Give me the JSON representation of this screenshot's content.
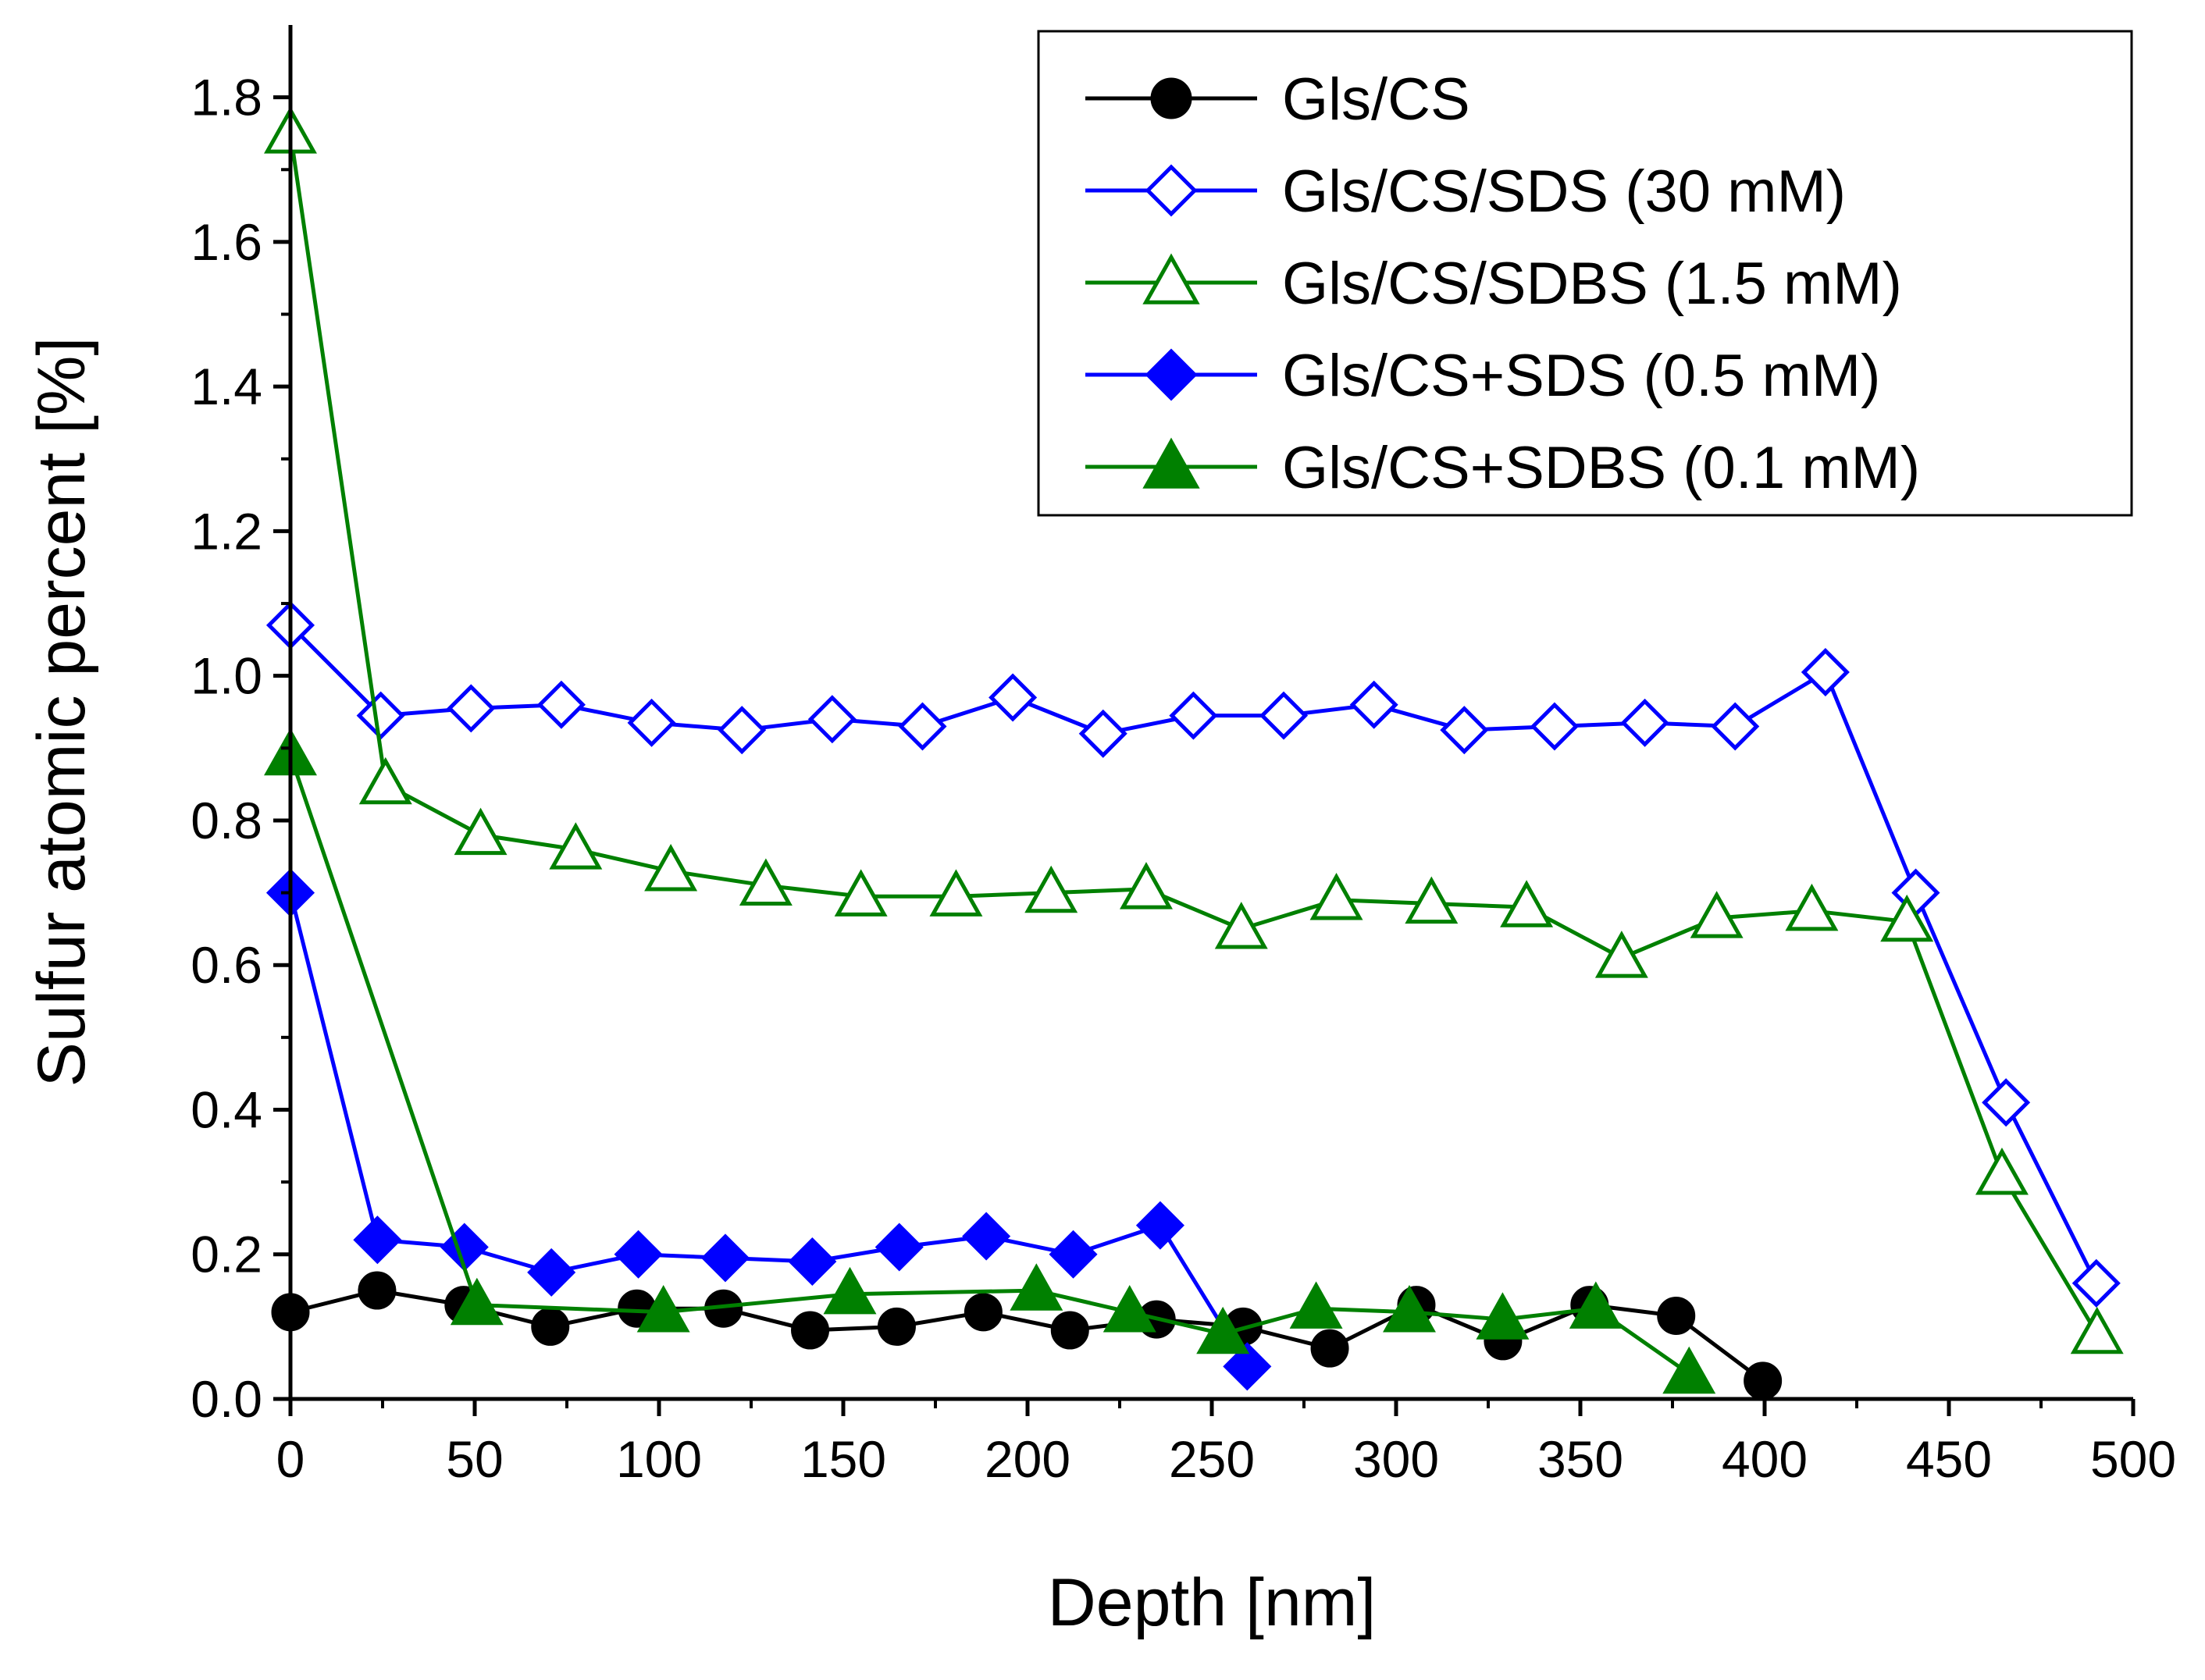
{
  "chart_data": {
    "type": "line",
    "title": "",
    "xlabel": "Depth [nm]",
    "ylabel": "Sulfur atomic percent [%]",
    "xlim": [
      0,
      500
    ],
    "ylim": [
      0,
      1.9
    ],
    "grid": false,
    "legend_position": "top-right",
    "x_ticks": [
      0,
      50,
      100,
      150,
      200,
      250,
      300,
      350,
      400,
      450,
      500
    ],
    "x_tick_labels": [
      "0",
      "50",
      "100",
      "150",
      "200",
      "250",
      "300",
      "350",
      "400",
      "450",
      "500"
    ],
    "y_ticks": [
      0,
      0.2,
      0.4,
      0.6,
      0.8,
      1.0,
      1.2,
      1.4,
      1.6,
      1.8
    ],
    "y_tick_labels": [
      "0.0",
      "0.2",
      "0.4",
      "0.6",
      "0.8",
      "1.0",
      "1.2",
      "1.4",
      "1.6",
      "1.8"
    ],
    "series": [
      {
        "name": "Gls/CS",
        "color": "#000000",
        "marker": "circle",
        "filled": true,
        "x": [
          0,
          23.5,
          47,
          70.5,
          94,
          117.5,
          141,
          164.5,
          188,
          211.5,
          235,
          258.5,
          282,
          305.5,
          329,
          352.5,
          376,
          399.5
        ],
        "y": [
          0.12,
          0.15,
          0.13,
          0.1,
          0.125,
          0.125,
          0.095,
          0.1,
          0.12,
          0.095,
          0.11,
          0.1,
          0.07,
          0.13,
          0.08,
          0.13,
          0.115,
          0.025
        ]
      },
      {
        "name": "Gls/CS/SDS (30 mM)",
        "color": "#0000ff",
        "marker": "diamond",
        "filled": false,
        "x": [
          0,
          24.5,
          49,
          73.5,
          98,
          122.5,
          147,
          171.5,
          196,
          220.5,
          245,
          269.5,
          294,
          318.5,
          343,
          367.5,
          392,
          416.5,
          441,
          465.5,
          490
        ],
        "y": [
          1.07,
          0.945,
          0.955,
          0.96,
          0.935,
          0.925,
          0.94,
          0.93,
          0.97,
          0.92,
          0.945,
          0.945,
          0.96,
          0.925,
          0.93,
          0.935,
          0.93,
          1.005,
          0.7,
          0.41,
          0.16
        ]
      },
      {
        "name": "Gls/CS/SDBS (1.5 mM)",
        "color": "#008000",
        "marker": "triangle",
        "filled": false,
        "x": [
          0,
          25.8,
          51.6,
          77.4,
          103.2,
          129,
          154.8,
          180.6,
          206.4,
          232.2,
          258,
          283.8,
          309.6,
          335.4,
          361.2,
          387,
          412.8,
          438.6,
          464.4,
          490.2
        ],
        "y": [
          1.75,
          0.85,
          0.78,
          0.76,
          0.73,
          0.71,
          0.695,
          0.695,
          0.7,
          0.705,
          0.65,
          0.69,
          0.685,
          0.68,
          0.61,
          0.665,
          0.675,
          0.66,
          0.31,
          0.09
        ]
      },
      {
        "name": "Gls/CS+SDS (0.5 mM)",
        "color": "#0000ff",
        "marker": "diamond",
        "filled": true,
        "x": [
          0,
          23.6,
          47.2,
          70.8,
          94.4,
          118,
          141.6,
          165.2,
          188.8,
          212.4,
          236,
          259.6
        ],
        "y": [
          0.7,
          0.22,
          0.21,
          0.175,
          0.2,
          0.195,
          0.19,
          0.21,
          0.225,
          0.2,
          0.24,
          0.045
        ]
      },
      {
        "name": "Gls/CS+SDBS (0.1 mM)",
        "color": "#008000",
        "marker": "triangle",
        "filled": true,
        "x": [
          0,
          50.6,
          101.2,
          151.8,
          202.4,
          227.7,
          253,
          278.3,
          303.6,
          328.9,
          354.2,
          379.5
        ],
        "y": [
          0.89,
          0.13,
          0.12,
          0.145,
          0.15,
          0.12,
          0.09,
          0.125,
          0.12,
          0.11,
          0.125,
          0.035
        ]
      }
    ]
  }
}
